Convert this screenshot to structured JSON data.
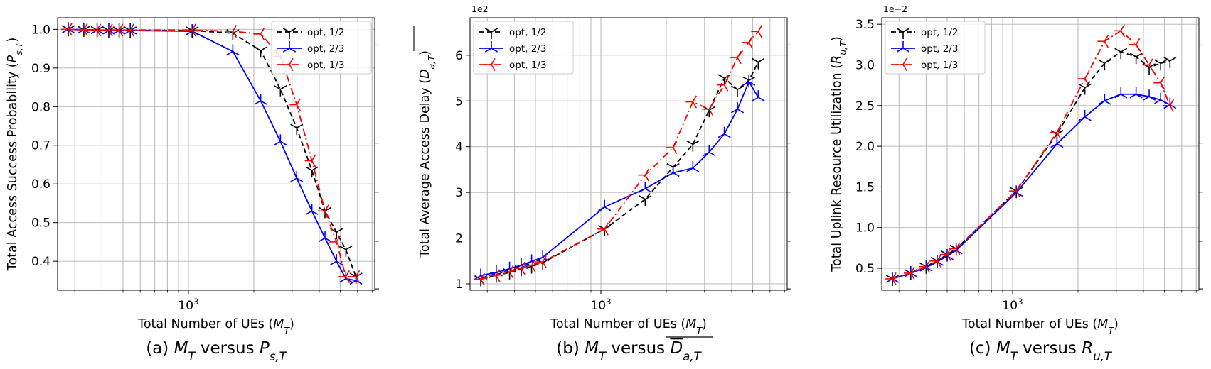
{
  "chart_data": [
    {
      "type": "line",
      "caption": "(a) M_T versus P_s,T",
      "xlabel": "Total Number of UEs (M_T)",
      "ylabel": "Total Access Success Probability (P_s,T)",
      "xscale": "log",
      "xlim": [
        250,
        7200
      ],
      "ylim": [
        0.325,
        1.03
      ],
      "yticks": [
        0.4,
        0.5,
        0.6,
        0.7,
        0.8,
        0.9,
        1.0
      ],
      "ytick_labels": [
        "0.4",
        "0.5",
        "0.6",
        "0.7",
        "0.8",
        "0.9",
        "1.0"
      ],
      "xtick_labels": [
        {
          "value": 1000,
          "label": "10^3"
        }
      ],
      "offset_label": "",
      "grid": true,
      "legend": "top-right",
      "series": [
        {
          "name": "opt, 1/2",
          "color": "#000000",
          "style": "dashed",
          "marker": "tri_down",
          "x": [
            280,
            330,
            380,
            430,
            480,
            540,
            1040,
            1600,
            2150,
            2650,
            3150,
            3700,
            4250,
            4800,
            5300,
            5900
          ],
          "y": [
            1.0,
            0.999,
            0.998,
            0.997,
            0.997,
            0.997,
            0.997,
            0.99,
            0.945,
            0.845,
            0.745,
            0.635,
            0.53,
            0.475,
            0.43,
            0.36
          ]
        },
        {
          "name": "opt, 2/3",
          "color": "#0000ff",
          "style": "solid",
          "marker": "tri_up",
          "x": [
            280,
            330,
            380,
            430,
            480,
            540,
            1040,
            1600,
            2150,
            2650,
            3150,
            3700,
            4250,
            4800,
            5300,
            5900
          ],
          "y": [
            1.0,
            0.999,
            0.998,
            0.997,
            0.997,
            0.997,
            0.995,
            0.943,
            0.815,
            0.71,
            0.615,
            0.53,
            0.46,
            0.4,
            0.355,
            0.35
          ]
        },
        {
          "name": "opt, 1/3",
          "color": "#ff0000",
          "style": "dashdot",
          "marker": "tri_left",
          "x": [
            280,
            330,
            380,
            430,
            480,
            540,
            1040,
            1600,
            2150,
            2650,
            3150,
            3700,
            4250,
            4800,
            5300,
            5900
          ],
          "y": [
            1.0,
            0.999,
            0.998,
            0.998,
            0.998,
            0.998,
            0.998,
            0.995,
            0.988,
            0.93,
            0.805,
            0.66,
            0.53,
            0.45,
            0.36,
            0.36
          ]
        }
      ]
    },
    {
      "type": "line",
      "caption": "(b) M_T versus D_a,T",
      "xlabel": "Total Number of UEs (M_T)",
      "ylabel": "Total Average Access Delay (D_a,T)",
      "xscale": "log",
      "xlim": [
        250,
        7200
      ],
      "ylim": [
        0.86,
        6.82
      ],
      "yticks": [
        1,
        2,
        3,
        4,
        5,
        6
      ],
      "ytick_labels": [
        "1",
        "2",
        "3",
        "4",
        "5",
        "6"
      ],
      "xtick_labels": [
        {
          "value": 1000,
          "label": "10^3"
        }
      ],
      "offset_label": "1e2",
      "grid": true,
      "legend": "top-left",
      "series": [
        {
          "name": "opt, 1/2",
          "color": "#000000",
          "style": "dashed",
          "marker": "tri_down",
          "x": [
            280,
            330,
            380,
            430,
            480,
            540,
            1040,
            1600,
            2150,
            2650,
            3150,
            3700,
            4250,
            4800,
            5300
          ],
          "y": [
            1.1,
            1.18,
            1.25,
            1.32,
            1.38,
            1.46,
            2.2,
            2.85,
            3.55,
            4.05,
            4.8,
            5.5,
            5.25,
            5.45,
            5.85
          ]
        },
        {
          "name": "opt, 2/3",
          "color": "#0000ff",
          "style": "solid",
          "marker": "tri_up",
          "x": [
            280,
            330,
            380,
            430,
            480,
            540,
            1040,
            1600,
            2150,
            2650,
            3150,
            3700,
            4250,
            4800,
            5300
          ],
          "y": [
            1.18,
            1.25,
            1.33,
            1.41,
            1.49,
            1.58,
            2.68,
            3.08,
            3.43,
            3.53,
            3.88,
            4.28,
            4.82,
            5.42,
            5.08
          ]
        },
        {
          "name": "opt, 1/3",
          "color": "#ff0000",
          "style": "dashdot",
          "marker": "tri_left",
          "x": [
            280,
            330,
            380,
            430,
            480,
            540,
            1040,
            1600,
            2150,
            2650,
            3150,
            3700,
            4250,
            4800,
            5300
          ],
          "y": [
            1.1,
            1.18,
            1.26,
            1.34,
            1.4,
            1.48,
            2.2,
            3.38,
            3.98,
            4.98,
            4.82,
            5.35,
            5.95,
            6.28,
            6.52
          ]
        }
      ]
    },
    {
      "type": "line",
      "caption": "(c) M_T versus R_u,T",
      "xlabel": "Total Number of UEs (M_T)",
      "ylabel": "Total Uplink Resource Utilization (R_u,T)",
      "xscale": "log",
      "xlim": [
        250,
        7200
      ],
      "ylim": [
        0.23,
        3.58
      ],
      "yticks": [
        0.5,
        1.0,
        1.5,
        2.0,
        2.5,
        3.0,
        3.5
      ],
      "ytick_labels": [
        "0.5",
        "1.0",
        "1.5",
        "2.0",
        "2.5",
        "3.0",
        "3.5"
      ],
      "xtick_labels": [
        {
          "value": 1000,
          "label": "10^3"
        }
      ],
      "offset_label": "1e−2",
      "grid": true,
      "legend": "top-left",
      "series": [
        {
          "name": "opt, 1/2",
          "color": "#000000",
          "style": "dashed",
          "marker": "tri_down",
          "x": [
            280,
            340,
            400,
            450,
            500,
            550,
            1040,
            1600,
            2150,
            2650,
            3150,
            3700,
            4250,
            4800,
            5300
          ],
          "y": [
            0.37,
            0.44,
            0.52,
            0.59,
            0.67,
            0.74,
            1.45,
            2.15,
            2.72,
            3.02,
            3.16,
            3.1,
            2.97,
            3.02,
            3.05
          ]
        },
        {
          "name": "opt, 2/3",
          "color": "#0000ff",
          "style": "solid",
          "marker": "tri_up",
          "x": [
            280,
            340,
            400,
            450,
            500,
            550,
            1040,
            1600,
            2150,
            2650,
            3150,
            3700,
            4250,
            4800,
            5300
          ],
          "y": [
            0.37,
            0.44,
            0.51,
            0.58,
            0.65,
            0.72,
            1.43,
            2.03,
            2.36,
            2.56,
            2.64,
            2.64,
            2.61,
            2.57,
            2.51
          ]
        },
        {
          "name": "opt, 1/3",
          "color": "#ff0000",
          "style": "dashdot",
          "marker": "tri_left",
          "x": [
            280,
            340,
            400,
            450,
            500,
            550,
            1040,
            1600,
            2150,
            2650,
            3150,
            3700,
            4250,
            4800,
            5300
          ],
          "y": [
            0.37,
            0.44,
            0.52,
            0.59,
            0.67,
            0.74,
            1.45,
            2.17,
            2.83,
            3.29,
            3.42,
            3.25,
            3.0,
            2.78,
            2.5
          ]
        }
      ]
    }
  ]
}
